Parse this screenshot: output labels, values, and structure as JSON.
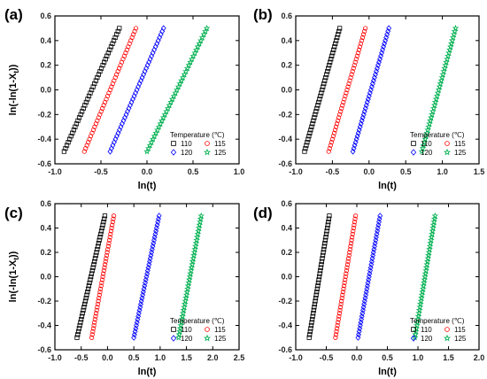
{
  "chart_data": [
    {
      "panel": "(a)",
      "type": "scatter",
      "xlabel": "ln(t)",
      "ylabel": "ln(-ln(1-X",
      "ylabel_sub": "t",
      "ylabel_tail": "))",
      "xlim": [
        -1.0,
        1.0
      ],
      "ylim": [
        -0.6,
        0.6
      ],
      "xticks": [
        "-1.0",
        "-0.5",
        "0.0",
        "0.5",
        "1.0"
      ],
      "yticks": [
        "-0.6",
        "-0.4",
        "-0.2",
        "0.0",
        "0.2",
        "0.4",
        "0.6"
      ],
      "grid": false,
      "legend_title": "Temperature (℃)",
      "legend_position": "bottom-right",
      "series": [
        {
          "name": "110",
          "color": "#000000",
          "marker": "square",
          "x_start": -0.9,
          "x_end": -0.3,
          "y_start": -0.5,
          "y_end": 0.5
        },
        {
          "name": "115",
          "color": "#ff0000",
          "marker": "circle",
          "x_start": -0.68,
          "x_end": -0.12,
          "y_start": -0.5,
          "y_end": 0.5
        },
        {
          "name": "120",
          "color": "#0000ff",
          "marker": "diamond",
          "x_start": -0.4,
          "x_end": 0.18,
          "y_start": -0.5,
          "y_end": 0.5
        },
        {
          "name": "125",
          "color": "#00b050",
          "marker": "star",
          "x_start": 0.0,
          "x_end": 0.65,
          "y_start": -0.5,
          "y_end": 0.5
        }
      ]
    },
    {
      "panel": "(b)",
      "type": "scatter",
      "xlabel": "ln(t)",
      "ylabel": "",
      "xlim": [
        -1.0,
        1.5
      ],
      "ylim": [
        -0.6,
        0.6
      ],
      "xticks": [
        "-1.0",
        "-0.5",
        "0.0",
        "0.5",
        "1.0",
        "1.5"
      ],
      "yticks": [
        "-0.6",
        "-0.4",
        "-0.2",
        "0.0",
        "0.2",
        "0.4",
        "0.6"
      ],
      "grid": false,
      "legend_title": "Temperature (℃)",
      "legend_position": "bottom-right",
      "series": [
        {
          "name": "110",
          "color": "#000000",
          "marker": "square",
          "x_start": -0.88,
          "x_end": -0.4,
          "y_start": -0.5,
          "y_end": 0.5
        },
        {
          "name": "115",
          "color": "#ff0000",
          "marker": "circle",
          "x_start": -0.55,
          "x_end": -0.05,
          "y_start": -0.5,
          "y_end": 0.5
        },
        {
          "name": "120",
          "color": "#0000ff",
          "marker": "diamond",
          "x_start": -0.22,
          "x_end": 0.27,
          "y_start": -0.5,
          "y_end": 0.5
        },
        {
          "name": "125",
          "color": "#00b050",
          "marker": "star",
          "x_start": 0.72,
          "x_end": 1.18,
          "y_start": -0.5,
          "y_end": 0.5
        }
      ]
    },
    {
      "panel": "(c)",
      "type": "scatter",
      "xlabel": "ln(t)",
      "ylabel": "ln(-ln(1-X",
      "ylabel_sub": "t",
      "ylabel_tail": "))",
      "xlim": [
        -1.0,
        2.5
      ],
      "ylim": [
        -0.6,
        0.6
      ],
      "xticks": [
        "-1.0",
        "-0.5",
        "0.0",
        "0.5",
        "1.0",
        "1.5",
        "2.0",
        "2.5"
      ],
      "yticks": [
        "-0.6",
        "-0.4",
        "-0.2",
        "0.0",
        "0.2",
        "0.4",
        "0.6"
      ],
      "grid": false,
      "legend_title": "Temperature (℃)",
      "legend_position": "bottom-right",
      "series": [
        {
          "name": "110",
          "color": "#000000",
          "marker": "square",
          "x_start": -0.58,
          "x_end": -0.05,
          "y_start": -0.5,
          "y_end": 0.5
        },
        {
          "name": "115",
          "color": "#ff0000",
          "marker": "circle",
          "x_start": -0.3,
          "x_end": 0.12,
          "y_start": -0.5,
          "y_end": 0.5
        },
        {
          "name": "120",
          "color": "#0000ff",
          "marker": "diamond",
          "x_start": 0.5,
          "x_end": 0.98,
          "y_start": -0.5,
          "y_end": 0.5
        },
        {
          "name": "125",
          "color": "#00b050",
          "marker": "star",
          "x_start": 1.35,
          "x_end": 1.78,
          "y_start": -0.5,
          "y_end": 0.5
        }
      ]
    },
    {
      "panel": "(d)",
      "type": "scatter",
      "xlabel": "ln(t)",
      "ylabel": "",
      "xlim": [
        -1.0,
        2.0
      ],
      "ylim": [
        -0.6,
        0.6
      ],
      "xticks": [
        "-1.0",
        "-0.5",
        "0.0",
        "0.5",
        "1.0",
        "1.5",
        "2.0"
      ],
      "yticks": [
        "-0.6",
        "-0.4",
        "-0.2",
        "0.0",
        "0.2",
        "0.4",
        "0.6"
      ],
      "grid": false,
      "legend_title": "Temperature (℃)",
      "legend_position": "bottom-right",
      "series": [
        {
          "name": "110",
          "color": "#000000",
          "marker": "square",
          "x_start": -0.78,
          "x_end": -0.45,
          "y_start": -0.5,
          "y_end": 0.5
        },
        {
          "name": "115",
          "color": "#ff0000",
          "marker": "circle",
          "x_start": -0.35,
          "x_end": -0.02,
          "y_start": -0.5,
          "y_end": 0.5
        },
        {
          "name": "120",
          "color": "#0000ff",
          "marker": "diamond",
          "x_start": 0.02,
          "x_end": 0.38,
          "y_start": -0.5,
          "y_end": 0.5
        },
        {
          "name": "125",
          "color": "#00b050",
          "marker": "star",
          "x_start": 0.95,
          "x_end": 1.28,
          "y_start": -0.5,
          "y_end": 0.5
        }
      ]
    }
  ]
}
